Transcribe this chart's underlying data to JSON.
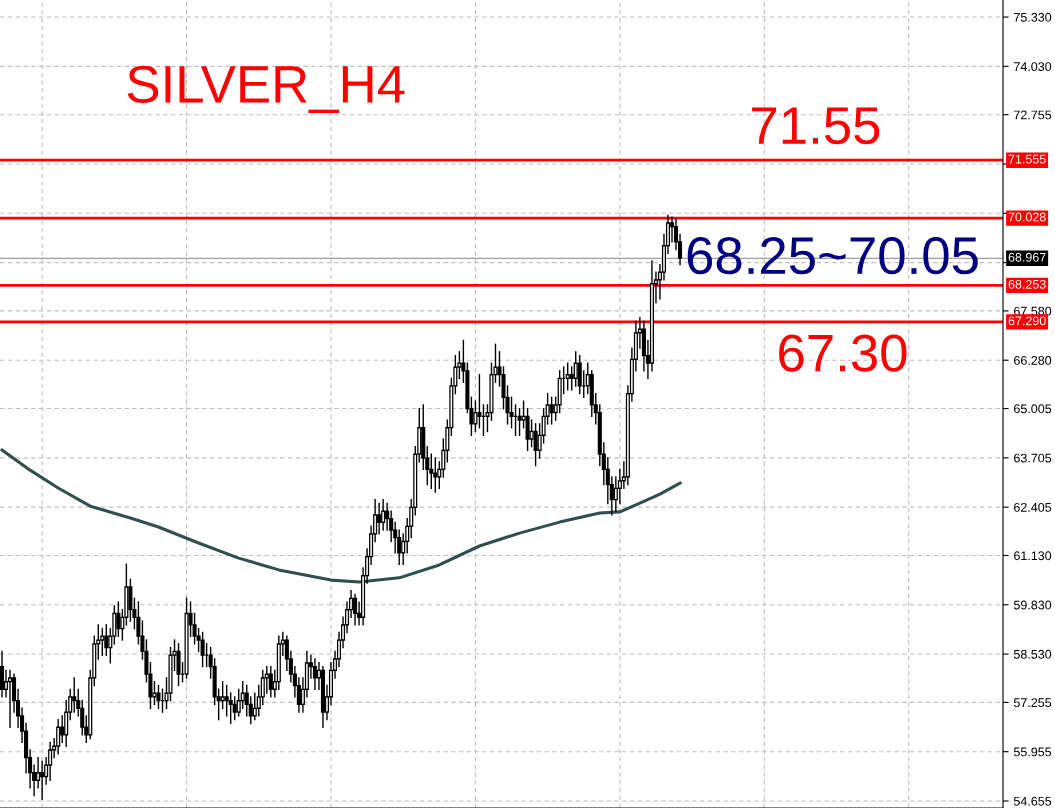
{
  "chart_data": {
    "type": "candlestick",
    "title": "SILVER_H4",
    "categories": [
      null,
      null,
      null,
      null,
      null,
      null,
      null,
      null,
      null,
      null,
      null,
      null,
      null,
      null,
      null,
      null,
      null,
      null,
      null,
      null,
      null,
      null,
      null,
      null,
      null,
      null,
      null,
      null,
      null,
      null,
      null,
      null,
      null,
      null,
      null,
      null,
      null,
      null,
      null,
      null,
      null,
      null,
      null,
      null,
      null,
      null,
      null,
      null,
      null,
      null,
      null,
      null,
      null,
      null,
      null,
      null,
      null,
      null,
      null,
      null,
      null,
      null,
      null,
      null,
      null,
      null,
      null,
      null,
      null,
      null,
      null,
      null,
      null,
      null,
      null,
      null,
      null,
      null,
      null,
      null,
      null,
      null,
      null,
      null,
      null,
      null,
      null,
      null,
      null,
      null,
      null,
      null,
      null,
      null,
      null,
      null,
      null,
      null,
      null,
      null,
      null,
      null,
      null,
      null,
      null,
      null,
      null,
      null,
      null,
      null,
      null,
      null,
      null,
      null,
      null,
      null,
      null,
      null,
      null,
      null,
      null,
      null,
      null,
      null,
      null,
      null,
      null,
      null,
      null,
      null,
      null,
      null,
      null,
      null,
      null,
      null,
      null,
      null,
      null,
      null,
      null,
      null,
      null,
      null,
      null,
      null,
      null,
      null,
      null,
      null,
      null,
      null,
      null,
      null,
      null,
      null,
      null,
      null,
      null,
      null,
      null,
      null,
      null,
      null,
      null,
      null,
      null,
      null,
      null,
      null,
      null,
      null,
      null,
      null,
      null,
      null,
      null,
      null,
      null,
      null,
      null,
      null,
      null,
      null,
      null,
      null,
      null,
      null,
      null,
      null,
      null,
      null,
      null,
      null,
      null,
      null,
      null,
      null,
      null,
      null,
      null,
      null,
      null,
      null,
      null,
      null,
      null,
      null,
      null,
      null,
      null,
      null,
      null,
      null,
      null,
      null,
      null,
      null,
      null,
      null,
      null,
      null,
      null,
      null,
      null,
      null,
      null,
      null,
      null,
      null,
      null,
      null,
      null,
      null,
      null,
      null,
      null,
      null,
      null,
      null,
      null,
      null,
      null,
      null,
      null,
      null,
      null,
      null,
      null,
      null
    ],
    "ohlc": [
      [
        58.2,
        58.6,
        57.4,
        57.6
      ],
      [
        57.6,
        58.1,
        57.4,
        57.8
      ],
      [
        57.8,
        58.1,
        56.6,
        57.9
      ],
      [
        57.9,
        58.0,
        57.0,
        57.3
      ],
      [
        57.3,
        57.6,
        56.6,
        56.9
      ],
      [
        56.9,
        57.1,
        56.2,
        56.5
      ],
      [
        56.5,
        56.7,
        55.4,
        55.8
      ],
      [
        55.8,
        56.0,
        55.0,
        55.4
      ],
      [
        55.4,
        55.6,
        54.8,
        55.2
      ],
      [
        55.2,
        55.8,
        55.0,
        55.4
      ],
      [
        55.4,
        55.7,
        54.7,
        55.3
      ],
      [
        55.3,
        55.8,
        55.1,
        55.6
      ],
      [
        55.6,
        56.2,
        55.2,
        56.0
      ],
      [
        56.0,
        56.3,
        55.8,
        56.1
      ],
      [
        56.1,
        56.8,
        55.9,
        56.6
      ],
      [
        56.6,
        56.9,
        56.2,
        56.4
      ],
      [
        56.4,
        57.3,
        56.1,
        57.0
      ],
      [
        57.0,
        57.6,
        56.8,
        57.4
      ],
      [
        57.4,
        57.9,
        57.0,
        57.3
      ],
      [
        57.3,
        57.6,
        56.9,
        57.1
      ],
      [
        57.1,
        57.3,
        56.4,
        56.6
      ],
      [
        56.6,
        56.9,
        56.2,
        56.4
      ],
      [
        56.4,
        58.1,
        56.3,
        57.9
      ],
      [
        57.9,
        59.0,
        57.7,
        58.8
      ],
      [
        58.8,
        59.3,
        58.4,
        58.9
      ],
      [
        58.9,
        59.2,
        58.5,
        59.0
      ],
      [
        59.0,
        59.3,
        58.5,
        58.7
      ],
      [
        58.7,
        59.2,
        58.3,
        59.0
      ],
      [
        59.0,
        59.8,
        58.8,
        59.6
      ],
      [
        59.6,
        59.9,
        59.0,
        59.2
      ],
      [
        59.2,
        59.7,
        58.9,
        59.5
      ],
      [
        59.5,
        60.9,
        59.3,
        60.3
      ],
      [
        60.3,
        60.5,
        59.4,
        59.7
      ],
      [
        59.7,
        60.0,
        59.2,
        59.5
      ],
      [
        59.5,
        59.9,
        58.8,
        59.0
      ],
      [
        59.0,
        59.4,
        58.4,
        58.6
      ],
      [
        58.6,
        58.9,
        57.8,
        58.0
      ],
      [
        58.0,
        58.3,
        57.1,
        57.4
      ],
      [
        57.4,
        57.8,
        57.2,
        57.5
      ],
      [
        57.5,
        57.7,
        57.1,
        57.3
      ],
      [
        57.3,
        57.6,
        57.0,
        57.3
      ],
      [
        57.3,
        57.9,
        57.1,
        57.5
      ],
      [
        57.5,
        58.7,
        57.3,
        58.5
      ],
      [
        58.5,
        58.9,
        58.1,
        58.6
      ],
      [
        58.6,
        58.8,
        57.7,
        58.0
      ],
      [
        58.0,
        58.3,
        57.8,
        58.0
      ],
      [
        58.0,
        60.0,
        57.9,
        59.6
      ],
      [
        59.6,
        59.9,
        59.0,
        59.3
      ],
      [
        59.3,
        59.6,
        58.8,
        59.0
      ],
      [
        59.0,
        59.2,
        58.6,
        58.9
      ],
      [
        58.9,
        59.1,
        58.2,
        58.5
      ],
      [
        58.5,
        58.8,
        58.2,
        58.5
      ],
      [
        58.5,
        58.7,
        57.9,
        58.2
      ],
      [
        58.2,
        58.4,
        57.2,
        57.4
      ],
      [
        57.4,
        57.6,
        56.8,
        57.3
      ],
      [
        57.3,
        57.8,
        57.1,
        57.4
      ],
      [
        57.4,
        57.7,
        56.9,
        57.3
      ],
      [
        57.3,
        57.5,
        56.7,
        57.2
      ],
      [
        57.2,
        57.4,
        56.8,
        57.0
      ],
      [
        57.0,
        57.6,
        56.9,
        57.3
      ],
      [
        57.3,
        57.8,
        57.1,
        57.5
      ],
      [
        57.5,
        57.7,
        56.9,
        57.2
      ],
      [
        57.2,
        57.4,
        56.7,
        56.9
      ],
      [
        56.9,
        57.5,
        56.8,
        57.1
      ],
      [
        57.1,
        57.7,
        56.9,
        57.4
      ],
      [
        57.4,
        58.1,
        57.2,
        57.9
      ],
      [
        57.9,
        58.2,
        57.5,
        58.0
      ],
      [
        58.0,
        58.2,
        57.4,
        57.6
      ],
      [
        57.6,
        58.1,
        57.4,
        57.8
      ],
      [
        57.8,
        59.0,
        57.6,
        58.8
      ],
      [
        58.8,
        59.1,
        58.5,
        58.9
      ],
      [
        58.9,
        59.0,
        58.1,
        58.4
      ],
      [
        58.4,
        58.6,
        57.8,
        58.0
      ],
      [
        58.0,
        58.2,
        57.4,
        57.7
      ],
      [
        57.7,
        57.9,
        57.0,
        57.2
      ],
      [
        57.2,
        57.9,
        57.0,
        57.6
      ],
      [
        57.6,
        58.6,
        57.4,
        58.3
      ],
      [
        58.3,
        58.5,
        57.9,
        58.2
      ],
      [
        58.2,
        58.4,
        57.6,
        57.9
      ],
      [
        57.9,
        58.3,
        57.6,
        58.1
      ],
      [
        58.1,
        58.2,
        56.6,
        57.0
      ],
      [
        57.0,
        57.7,
        56.8,
        57.4
      ],
      [
        57.4,
        58.3,
        57.2,
        58.1
      ],
      [
        58.1,
        58.6,
        57.9,
        58.4
      ],
      [
        58.4,
        59.1,
        58.2,
        58.9
      ],
      [
        58.9,
        59.5,
        58.7,
        59.3
      ],
      [
        59.3,
        59.9,
        59.1,
        59.7
      ],
      [
        59.7,
        60.2,
        59.5,
        60.0
      ],
      [
        60.0,
        60.1,
        59.3,
        59.6
      ],
      [
        59.6,
        59.9,
        59.3,
        59.5
      ],
      [
        59.5,
        60.8,
        59.3,
        60.6
      ],
      [
        60.6,
        61.3,
        60.4,
        61.1
      ],
      [
        61.1,
        61.9,
        60.9,
        61.7
      ],
      [
        61.7,
        62.6,
        61.5,
        62.2
      ],
      [
        62.2,
        62.5,
        61.7,
        62.0
      ],
      [
        62.0,
        62.6,
        61.8,
        62.3
      ],
      [
        62.3,
        62.5,
        61.8,
        62.1
      ],
      [
        62.1,
        62.3,
        61.5,
        61.8
      ],
      [
        61.8,
        62.0,
        61.2,
        61.6
      ],
      [
        61.6,
        61.8,
        60.9,
        61.2
      ],
      [
        61.2,
        61.7,
        60.9,
        61.5
      ],
      [
        61.5,
        62.1,
        61.2,
        61.9
      ],
      [
        61.9,
        62.6,
        61.6,
        62.4
      ],
      [
        62.4,
        64.0,
        62.2,
        63.8
      ],
      [
        63.8,
        65.0,
        63.6,
        64.5
      ],
      [
        64.5,
        65.1,
        63.4,
        63.7
      ],
      [
        63.7,
        64.0,
        63.0,
        63.4
      ],
      [
        63.4,
        63.8,
        62.9,
        63.3
      ],
      [
        63.3,
        63.7,
        62.8,
        63.2
      ],
      [
        63.2,
        63.6,
        62.9,
        63.4
      ],
      [
        63.4,
        64.2,
        63.2,
        63.9
      ],
      [
        63.9,
        64.7,
        63.6,
        64.5
      ],
      [
        64.5,
        65.8,
        64.3,
        65.6
      ],
      [
        65.6,
        66.4,
        65.4,
        66.1
      ],
      [
        66.1,
        66.5,
        65.8,
        66.2
      ],
      [
        66.2,
        66.8,
        65.7,
        66.0
      ],
      [
        66.0,
        66.2,
        64.9,
        65.0
      ],
      [
        65.0,
        65.3,
        64.3,
        64.6
      ],
      [
        64.6,
        65.2,
        64.4,
        64.9
      ],
      [
        64.9,
        65.9,
        64.5,
        64.8
      ],
      [
        64.8,
        65.1,
        64.3,
        64.8
      ],
      [
        64.8,
        65.1,
        64.4,
        64.9
      ],
      [
        64.9,
        66.2,
        64.7,
        65.9
      ],
      [
        65.9,
        66.7,
        65.7,
        66.1
      ],
      [
        66.1,
        66.5,
        65.6,
        65.9
      ],
      [
        65.9,
        66.1,
        65.0,
        65.3
      ],
      [
        65.3,
        65.6,
        64.6,
        64.9
      ],
      [
        64.9,
        65.3,
        64.5,
        64.8
      ],
      [
        64.8,
        65.1,
        64.3,
        64.8
      ],
      [
        64.8,
        65.0,
        64.3,
        64.7
      ],
      [
        64.7,
        65.2,
        64.5,
        64.8
      ],
      [
        64.8,
        65.0,
        63.9,
        64.2
      ],
      [
        64.2,
        64.7,
        64.0,
        64.4
      ],
      [
        64.4,
        64.6,
        63.5,
        63.9
      ],
      [
        63.9,
        64.6,
        63.7,
        64.3
      ],
      [
        64.3,
        65.0,
        64.1,
        64.8
      ],
      [
        64.8,
        65.4,
        64.6,
        65.1
      ],
      [
        65.1,
        65.3,
        64.6,
        64.9
      ],
      [
        64.9,
        65.3,
        64.7,
        65.1
      ],
      [
        65.1,
        66.0,
        64.9,
        65.8
      ],
      [
        65.8,
        66.1,
        65.4,
        65.8
      ],
      [
        65.8,
        66.2,
        65.5,
        65.9
      ],
      [
        65.9,
        66.1,
        65.5,
        65.8
      ],
      [
        65.8,
        66.5,
        65.6,
        66.2
      ],
      [
        66.2,
        66.4,
        65.4,
        65.6
      ],
      [
        65.6,
        66.0,
        65.3,
        65.6
      ],
      [
        65.6,
        66.2,
        65.4,
        65.9
      ],
      [
        65.9,
        66.0,
        64.8,
        65.1
      ],
      [
        65.1,
        65.4,
        64.6,
        64.9
      ],
      [
        64.9,
        65.1,
        63.5,
        63.8
      ],
      [
        63.8,
        64.1,
        63.0,
        63.4
      ],
      [
        63.4,
        63.7,
        62.5,
        63.0
      ],
      [
        63.0,
        63.2,
        62.2,
        62.6
      ],
      [
        62.6,
        63.2,
        62.3,
        62.9
      ],
      [
        62.9,
        63.4,
        62.5,
        63.1
      ],
      [
        63.1,
        63.6,
        62.9,
        63.2
      ],
      [
        63.2,
        65.6,
        63.0,
        65.4
      ],
      [
        65.4,
        66.6,
        65.2,
        66.3
      ],
      [
        66.3,
        67.3,
        66.0,
        67.0
      ],
      [
        67.0,
        67.4,
        66.6,
        67.1
      ],
      [
        67.1,
        67.3,
        66.0,
        66.4
      ],
      [
        66.4,
        66.8,
        65.8,
        66.2
      ],
      [
        66.2,
        68.9,
        66.0,
        68.3
      ],
      [
        68.3,
        68.6,
        67.8,
        68.4
      ],
      [
        68.4,
        68.8,
        67.9,
        68.6
      ],
      [
        68.6,
        69.6,
        68.4,
        69.3
      ],
      [
        69.3,
        70.1,
        69.1,
        69.9
      ],
      [
        69.9,
        70.05,
        69.4,
        69.8
      ],
      [
        69.8,
        70.0,
        69.2,
        69.4
      ],
      [
        69.4,
        69.6,
        68.8,
        68.97
      ],
      null,
      null,
      null,
      null,
      null,
      null,
      null,
      null,
      null,
      null,
      null,
      null,
      null,
      null,
      null,
      null,
      null,
      null,
      null,
      null,
      null,
      null,
      null,
      null,
      null,
      null,
      null,
      null,
      null,
      null,
      null,
      null,
      null,
      null,
      null,
      null,
      null,
      null,
      null,
      null,
      null,
      null,
      null,
      null,
      null,
      null,
      null,
      null,
      null,
      null,
      null,
      null,
      null,
      null,
      null,
      null,
      null,
      null,
      null,
      null,
      null,
      null,
      null,
      null,
      null,
      null,
      null,
      null,
      null,
      null,
      null,
      null,
      null,
      null,
      null,
      null,
      null,
      null,
      null,
      null
    ],
    "series": [
      {
        "type": "line",
        "color": "#2f4f4f",
        "values": [
          63.91,
          null,
          null,
          null,
          null,
          null,
          null,
          63.38,
          null,
          null,
          null,
          null,
          null,
          null,
          62.91,
          null,
          null,
          null,
          null,
          null,
          null,
          null,
          62.43,
          null,
          null,
          null,
          null,
          null,
          null,
          null,
          null,
          null,
          62.12,
          null,
          null,
          null,
          null,
          null,
          null,
          61.88,
          null,
          null,
          null,
          null,
          null,
          null,
          null,
          null,
          null,
          61.46,
          null,
          null,
          null,
          null,
          null,
          null,
          null,
          null,
          null,
          61.06,
          null,
          null,
          null,
          null,
          null,
          null,
          null,
          null,
          null,
          60.75,
          null,
          null,
          null,
          null,
          null,
          null,
          null,
          null,
          null,
          null,
          null,
          null,
          60.48,
          null,
          null,
          null,
          null,
          null,
          null,
          60.43,
          null,
          null,
          null,
          null,
          null,
          null,
          null,
          null,
          null,
          60.54,
          null,
          null,
          null,
          null,
          null,
          null,
          null,
          null,
          null,
          60.88,
          null,
          null,
          null,
          null,
          null,
          null,
          null,
          null,
          null,
          61.38,
          null,
          null,
          null,
          null,
          null,
          null,
          null,
          null,
          null,
          61.72,
          null,
          null,
          null,
          null,
          null,
          null,
          null,
          null,
          null,
          62.01,
          null,
          null,
          null,
          null,
          null,
          null,
          null,
          null,
          null,
          62.25,
          null,
          null,
          null,
          null,
          62.28,
          null,
          null,
          null,
          null,
          62.51,
          null,
          null,
          null,
          null,
          62.75,
          null,
          null,
          null,
          null,
          63.04,
          null,
          null,
          null,
          null,
          null,
          null,
          null,
          null,
          null,
          null,
          null,
          null,
          null,
          null,
          null,
          null,
          null,
          null,
          null,
          null,
          null,
          null,
          null,
          null,
          null,
          null,
          null,
          null,
          null,
          null,
          null,
          null,
          null,
          null,
          null,
          null,
          null,
          null,
          null,
          null,
          null,
          null,
          null,
          null,
          null,
          null,
          null,
          null,
          null,
          null,
          null,
          null,
          null,
          null,
          null,
          null,
          null,
          null,
          null,
          null,
          null,
          null,
          null,
          null,
          null,
          null,
          null,
          null,
          null,
          null,
          null,
          null,
          null,
          null,
          null,
          null,
          null,
          null,
          null,
          null
        ]
      }
    ],
    "ylim": [
      54.47,
      75.78
    ],
    "yticks": [
      {
        "value": 75.33,
        "label": "75.330"
      },
      {
        "value": 74.03,
        "label": "74.030"
      },
      {
        "value": 72.755,
        "label": "72.755"
      },
      {
        "value": 71.455,
        "label": null
      },
      {
        "value": 70.155,
        "label": null
      },
      {
        "value": 68.855,
        "label": null
      },
      {
        "value": 67.58,
        "label": "67.580"
      },
      {
        "value": 66.28,
        "label": "66.280"
      },
      {
        "value": 65.005,
        "label": "65.005"
      },
      {
        "value": 63.705,
        "label": "63.705"
      },
      {
        "value": 62.405,
        "label": "62.405"
      },
      {
        "value": 61.13,
        "label": "61.130"
      },
      {
        "value": 59.83,
        "label": "59.830"
      },
      {
        "value": 58.53,
        "label": "58.530"
      },
      {
        "value": 57.255,
        "label": "57.255"
      },
      {
        "value": 55.955,
        "label": "55.955"
      },
      {
        "value": 54.655,
        "label": "54.655"
      }
    ],
    "ref_lines": [
      {
        "axis": "y",
        "value": 71.555,
        "label": "71.555",
        "color": "#ff0000"
      },
      {
        "axis": "y",
        "value": 70.028,
        "label": "70.028",
        "color": "#ff0000"
      },
      {
        "axis": "y",
        "value": 68.967,
        "label": "68.967",
        "color": "#a0a0a0"
      },
      {
        "axis": "y",
        "value": 68.253,
        "label": "68.253",
        "color": "#ff0000"
      },
      {
        "axis": "y",
        "value": 67.29,
        "label": "67.290",
        "color": "#ff0000"
      }
    ],
    "annotations": [
      {
        "text": "71.55",
        "y": 71.555
      },
      "68.25~70.05",
      {
        "text": "67.30",
        "y": 67.29
      }
    ],
    "grid": true,
    "legend": false,
    "tick_labels": "y"
  }
}
